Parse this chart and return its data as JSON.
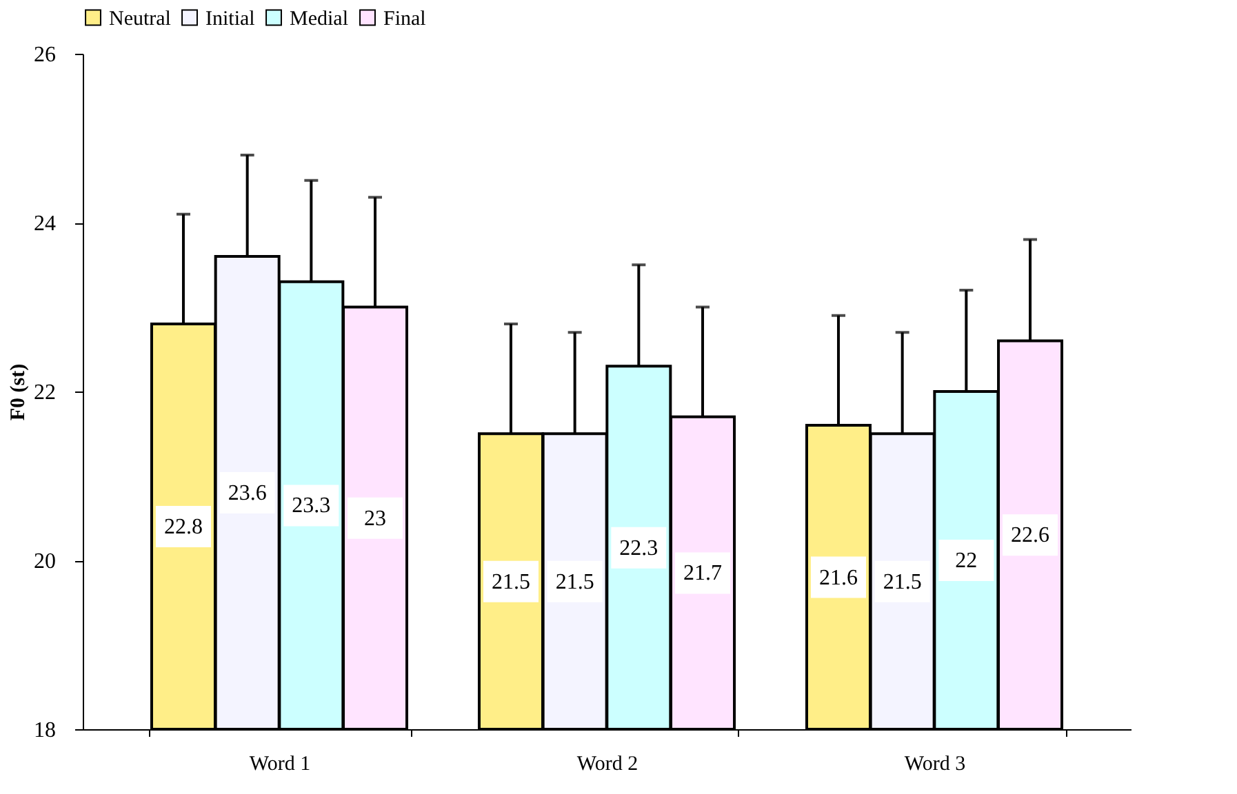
{
  "chart_data": {
    "type": "bar",
    "ylabel": "F0 (st)",
    "categories": [
      "Word 1",
      "Word 2",
      "Word 3"
    ],
    "series": [
      {
        "name": "Neutral",
        "color": "#ffee88",
        "values": [
          22.8,
          21.5,
          21.6
        ],
        "errors": [
          [
            22.8,
            24.1
          ],
          [
            21.5,
            22.8
          ],
          [
            21.6,
            22.9
          ]
        ]
      },
      {
        "name": "Initial",
        "color": "#f4f4ff",
        "values": [
          23.6,
          21.5,
          21.5
        ],
        "errors": [
          [
            23.6,
            24.8
          ],
          [
            21.5,
            22.7
          ],
          [
            21.5,
            22.7
          ]
        ]
      },
      {
        "name": "Medial",
        "color": "#ccffff",
        "values": [
          23.3,
          22.3,
          22
        ],
        "errors": [
          [
            23.3,
            24.5
          ],
          [
            22.3,
            23.5
          ],
          [
            22,
            23.2
          ]
        ]
      },
      {
        "name": "Final",
        "color": "#ffe4ff",
        "values": [
          23,
          21.7,
          22.6
        ],
        "errors": [
          [
            23,
            24.3
          ],
          [
            21.7,
            23.0
          ],
          [
            22.6,
            23.8
          ]
        ]
      }
    ],
    "ylim": [
      18,
      26
    ],
    "yticks": [
      18,
      20,
      22,
      24,
      26
    ],
    "data_labels": true,
    "legend": "top",
    "grid": false
  }
}
